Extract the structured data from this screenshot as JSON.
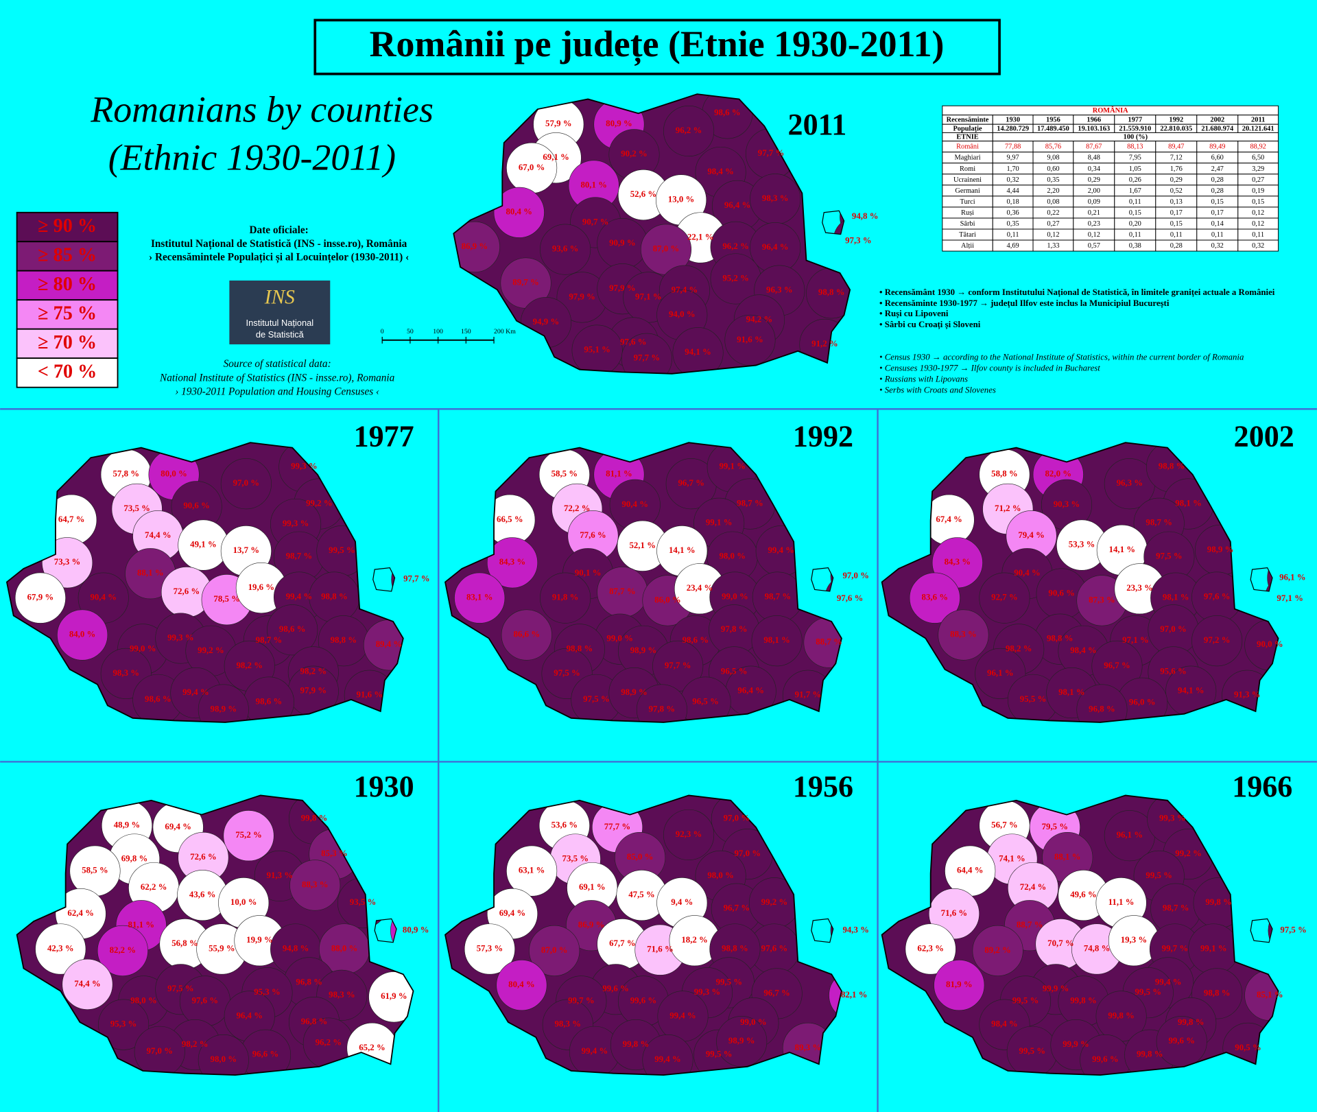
{
  "title": "Românii pe județe (Etnie 1930-2011)",
  "subtitle": [
    "Romanians by counties",
    "(Ethnic 1930-2011)"
  ],
  "legend": [
    {
      "label": "≥ 90 %",
      "min": 90,
      "color": "#5c0d55"
    },
    {
      "label": "≥ 85 %",
      "min": 85,
      "color": "#7d1b74"
    },
    {
      "label": "≥ 80 %",
      "min": 80,
      "color": "#c41ec4"
    },
    {
      "label": "≥ 75 %",
      "min": 75,
      "color": "#f487f4"
    },
    {
      "label": "≥ 70 %",
      "min": 70,
      "color": "#fbc2fb"
    },
    {
      "label": "< 70 %",
      "color": "#ffffff"
    }
  ],
  "official": [
    "Date oficiale:",
    "Institutul Național de Statistică (INS - insse.ro), România",
    "› Recensămintele Populațici și al Locuințelor  (1930-2011) ‹"
  ],
  "logo": {
    "mark": "INS",
    "lines": [
      "Institutul Național",
      "de Statistică"
    ]
  },
  "source": [
    "Source of statistical data:",
    "National Institute of Statistics (INS - insse.ro), Romania",
    "› 1930-2011 Population and Housing Censuses ‹"
  ],
  "scale_bar": [
    "0",
    "50",
    "100",
    "150",
    "200 Km"
  ],
  "table": {
    "title": "ROMÂNIA",
    "header": [
      "Recensăminte",
      "1930",
      "1956",
      "1966",
      "1977",
      "1992",
      "2002",
      "2011"
    ],
    "population": [
      "Populație",
      "14.280.729",
      "17.489.450",
      "19.103.163",
      "21.559.910",
      "22.810.035",
      "21.680.974",
      "20.121.641"
    ],
    "etnie": [
      "ETNIE",
      "100 (%)"
    ],
    "rows": [
      [
        "Români",
        "77,88",
        "85,76",
        "87,67",
        "88,13",
        "89,47",
        "89,49",
        "88,92"
      ],
      [
        "Maghiari",
        "9,97",
        "9,08",
        "8,48",
        "7,95",
        "7,12",
        "6,60",
        "6,50"
      ],
      [
        "Romi",
        "1,70",
        "0,60",
        "0,34",
        "1,05",
        "1,76",
        "2,47",
        "3,29"
      ],
      [
        "Ucraineni",
        "0,32",
        "0,35",
        "0,29",
        "0,26",
        "0,29",
        "0,28",
        "0,27"
      ],
      [
        "Germani",
        "4,44",
        "2,20",
        "2,00",
        "1,67",
        "0,52",
        "0,28",
        "0,19"
      ],
      [
        "Turci",
        "0,18",
        "0,08",
        "0,09",
        "0,11",
        "0,13",
        "0,15",
        "0,15"
      ],
      [
        "Ruși",
        "0,36",
        "0,22",
        "0,21",
        "0,15",
        "0,17",
        "0,17",
        "0,12"
      ],
      [
        "Sârbi",
        "0,35",
        "0,27",
        "0,23",
        "0,20",
        "0,15",
        "0,14",
        "0,12"
      ],
      [
        "Tătari",
        "0,11",
        "0,12",
        "0,12",
        "0,11",
        "0,11",
        "0,11",
        "0,11"
      ],
      [
        "Alții",
        "4,69",
        "1,33",
        "0,57",
        "0,38",
        "0,28",
        "0,32",
        "0,32"
      ]
    ]
  },
  "notes_ro": [
    "• Recensământ 1930 → conform Institutului Național de Statistică, în limitele graniței actuale a României",
    "• Recensăminte 1930-1977 → județul Ilfov este inclus la Municipiul București",
    "• Ruși cu Lipoveni",
    "• Sârbi cu Croați și Sloveni"
  ],
  "notes_en": [
    "• Census 1930 → according to the National Institute of Statistics, within the current border of Romania",
    "• Censuses 1930-1977 → Ilfov county is included in Bucharest",
    "• Russians with Lipovans",
    "• Serbs with Croats and Slovenes"
  ],
  "maps": [
    {
      "year": "2011",
      "values": [
        57.9,
        80.9,
        98.6,
        96.2,
        69.1,
        90.2,
        97.7,
        67.0,
        80.1,
        98.4,
        52.6,
        13.0,
        96.4,
        98.3,
        80.4,
        90.7,
        94.8,
        97.3,
        22.1,
        86.9,
        93.6,
        90.9,
        87.0,
        96.2,
        96.4,
        89.7,
        95.2,
        96.3,
        98.8,
        97.9,
        97.9,
        97.1,
        97.4,
        94.0,
        94.2,
        94.9,
        91.6,
        97.6,
        91.2,
        95.1,
        94.1,
        97.7
      ],
      "value_labels": [
        "57,9 %",
        "80,9 %",
        "98,6 %",
        "96,2 %",
        "69,1 %",
        "90,2 %",
        "97,7 %",
        "67,0 %",
        "80,1 %",
        "98,4 %",
        "52,6 %",
        "13,0 %",
        "96,4 %",
        "98,3 %",
        "80,4 %",
        "90,7 %",
        "94,8 %",
        "97,3 %",
        "22,1 %",
        "86,9 %",
        "93,6 %",
        "90,9 %",
        "87,0 %",
        "96,2 %",
        "96,4 %",
        "89,7 %",
        "95,2 %",
        "96,3 %",
        "98,8 %",
        "97,9 %",
        "97,9 %",
        "97,1 %",
        "97,4 %",
        "94,0 %",
        "94,2 %",
        "94,9 %",
        "91,6 %",
        "97,6 %",
        "91,2 %",
        "95,1 %",
        "94,1 %",
        "97,7 %"
      ]
    },
    {
      "year": "1977",
      "values": [
        57.8,
        80.0,
        97.0,
        99.3,
        73.5,
        90.6,
        99.2,
        64.7,
        74.4,
        99.3,
        49.1,
        13.7,
        98.7,
        99.5,
        73.3,
        88.1,
        97.7,
        67.9,
        90.4,
        72.6,
        78.5,
        19.6,
        99.4,
        98.8,
        84.0,
        99.0,
        99.3,
        99.2,
        98.7,
        98.6,
        98.8,
        89.4,
        98.2,
        98.3,
        98.2,
        97.9,
        91.6,
        98.6,
        99.4,
        98.6,
        98.9
      ],
      "value_labels": [
        "57,8 %",
        "80,0 %",
        "97,0 %",
        "99,3 %",
        "73,5 %",
        "90,6 %",
        "99,2 %",
        "64,7 %",
        "74,4 %",
        "99,3 %",
        "49,1 %",
        "13,7 %",
        "98,7 %",
        "99,5 %",
        "73,3 %",
        "88,1 %",
        "97,7 %",
        "67,9 %",
        "90,4 %",
        "72,6 %",
        "78,5 %",
        "19,6 %",
        "99,4 %",
        "98,8 %",
        "84,0 %",
        "99,0 %",
        "99,3 %",
        "99,2 %",
        "98,7 %",
        "98,6 %",
        "98,8 %",
        "89,4 %",
        "98,2 %",
        "98,3 %",
        "98,2 %",
        "97,9 %",
        "91,6 %",
        "98,6 %",
        "99,4 %",
        "98,6 %",
        "98,9 %"
      ]
    },
    {
      "year": "1992",
      "values": [
        58.5,
        81.1,
        96.7,
        99.1,
        72.2,
        90.4,
        98.7,
        66.5,
        77.6,
        99.1,
        52.1,
        14.1,
        98.0,
        99.4,
        84.3,
        90.1,
        97.0,
        83.1,
        91.8,
        87.7,
        86.0,
        23.4,
        99.0,
        98.7,
        97.6,
        86.6,
        99.0,
        98.8,
        98.9,
        98.6,
        97.8,
        98.1,
        88.7,
        97.7,
        97.5,
        96.5,
        96.4,
        91.7,
        97.5,
        98.9,
        96.5,
        97.8
      ],
      "value_labels": [
        "58,5 %",
        "81,1 %",
        "96,7 %",
        "99,1 %",
        "72,2 %",
        "90,4 %",
        "98,7 %",
        "66,5 %",
        "77,6 %",
        "99,1 %",
        "52,1 %",
        "14,1 %",
        "98,0 %",
        "99,4 %",
        "84,3 %",
        "90,1 %",
        "97,0 %",
        "83,1 %",
        "91,8 %",
        "87,7 %",
        "86,0 %",
        "23,4 %",
        "99,0 %",
        "98,7 %",
        "97,6 %",
        "86,6 %",
        "99,0 %",
        "98,8 %",
        "98,9 %",
        "98,6 %",
        "97,8 %",
        "98,1 %",
        "88,7 %",
        "97,7 %",
        "97,5 %",
        "96,5 %",
        "96,4 %",
        "91,7 %",
        "97,5 %",
        "98,9 %",
        "96,5 %",
        "97,8 %"
      ]
    },
    {
      "year": "2002",
      "values": [
        58.8,
        82.0,
        96.3,
        98.8,
        71.2,
        90.3,
        98.1,
        67.4,
        79.4,
        98.7,
        53.3,
        14.1,
        97.5,
        98.9,
        84.3,
        90.4,
        96.1,
        83.6,
        92.7,
        90.6,
        87.3,
        23.3,
        98.1,
        97.6,
        97.1,
        88.3,
        98.8,
        98.2,
        98.4,
        97.1,
        97.0,
        97.2,
        90.0,
        96.7,
        96.1,
        95.6,
        94.1,
        91.3,
        95.5,
        98.1,
        96.0,
        96.8
      ],
      "value_labels": [
        "58,8 %",
        "82,0 %",
        "96,3 %",
        "98,8 %",
        "71,2 %",
        "90,3 %",
        "98,1 %",
        "67,4 %",
        "79,4 %",
        "98,7 %",
        "53,3 %",
        "14,1 %",
        "97,5 %",
        "98,9 %",
        "84,3 %",
        "90,4 %",
        "96,1 %",
        "83,6 %",
        "92,7 %",
        "90,6 %",
        "87,3 %",
        "23,3 %",
        "98,1 %",
        "97,6 %",
        "97,1 %",
        "88,3 %",
        "98,8 %",
        "98,2 %",
        "98,4 %",
        "97,1 %",
        "97,0 %",
        "97,2 %",
        "90,0 %",
        "96,7 %",
        "96,1 %",
        "95,6 %",
        "94,1 %",
        "91,3 %",
        "95,5 %",
        "98,1 %",
        "96,0 %",
        "96,8 %"
      ]
    },
    {
      "year": "1930",
      "values": [
        48.9,
        69.4,
        75.2,
        99.8,
        69.8,
        72.6,
        85.3,
        58.5,
        62.2,
        91.3,
        43.6,
        10.0,
        88.3,
        93.5,
        62.4,
        81.1,
        80.9,
        42.3,
        82.2,
        56.8,
        55.9,
        19.9,
        94.8,
        88.0,
        96.8,
        74.4,
        98.3,
        61.9,
        98.0,
        97.5,
        97.6,
        95.3,
        96.4,
        96.8,
        95.3,
        98.2,
        96.2,
        97.0,
        96.6,
        65.2,
        98.0
      ],
      "value_labels": [
        "48,9 %",
        "69,4 %",
        "75,2 %",
        "99,8 %",
        "69,8 %",
        "72,6 %",
        "85,3 %",
        "58,5 %",
        "62,2 %",
        "91,3 %",
        "43,6 %",
        "10,0 %",
        "88,3 %",
        "93,5 %",
        "62,4 %",
        "81,1 %",
        "80,9 %",
        "42,3 %",
        "82,2 %",
        "56,8 %",
        "55,9 %",
        "19,9 %",
        "94,8 %",
        "88,0 %",
        "96,8 %",
        "74,4 %",
        "98,3 %",
        "61,9 %",
        "98,0 %",
        "97,5 %",
        "97,6 %",
        "95,3 %",
        "96,4 %",
        "96,8 %",
        "95,3 %",
        "98,2 %",
        "96,2 %",
        "97,0 %",
        "96,6 %",
        "65,2 %",
        "98,0 %"
      ]
    },
    {
      "year": "1956",
      "values": [
        53.6,
        77.7,
        92.3,
        97.0,
        73.5,
        85.0,
        97.0,
        63.1,
        69.1,
        98.0,
        47.5,
        9.4,
        69.4,
        86.9,
        96.7,
        99.2,
        94.3,
        57.3,
        87.0,
        67.7,
        71.6,
        18.2,
        97.6,
        98.8,
        80.4,
        99.5,
        99.6,
        99.6,
        99.3,
        96.7,
        82.1,
        99.7,
        99.4,
        99.0,
        98.3,
        89.3,
        99.4,
        99.8,
        99.4,
        99.5,
        98.9
      ],
      "value_labels": [
        "53,6 %",
        "77,7 %",
        "92,3 %",
        "97,0 %",
        "73,5 %",
        "85,0 %",
        "97,0 %",
        "63,1 %",
        "69,1 %",
        "98,0 %",
        "47,5 %",
        "9,4 %",
        "69,4 %",
        "86,9 %",
        "96,7 %",
        "99,2 %",
        "94,3 %",
        "57,3 %",
        "87,0 %",
        "67,7 %",
        "71,6 %",
        "18,2 %",
        "97,6 %",
        "98,8 %",
        "80,4 %",
        "99,5 %",
        "99,6 %",
        "99,6 %",
        "99,3 %",
        "96,7 %",
        "82,1 %",
        "99,7 %",
        "99,4 %",
        "99,0 %",
        "98,3 %",
        "89,3 %",
        "99,4 %",
        "99,8 %",
        "99,4 %",
        "99,5 %",
        "98,9 %"
      ]
    },
    {
      "year": "1966",
      "values": [
        56.7,
        79.5,
        96.1,
        99.3,
        74.1,
        88.1,
        99.2,
        64.4,
        72.4,
        99.5,
        49.6,
        11.1,
        98.7,
        99.8,
        71.6,
        88.7,
        97.5,
        62.3,
        89.2,
        70.7,
        74.8,
        19.3,
        99.7,
        99.1,
        81.9,
        99.4,
        99.9,
        99.8,
        99.5,
        98.8,
        85.1,
        99.5,
        99.8,
        99.8,
        98.4,
        90.5,
        99.5,
        99.9,
        99.6,
        99.8,
        99.6
      ],
      "value_labels": [
        "56,7 %",
        "79,5 %",
        "96,1 %",
        "99,3 %",
        "74,1 %",
        "88,1 %",
        "99,2 %",
        "64,4 %",
        "72,4 %",
        "99,5 %",
        "49,6 %",
        "11,1 %",
        "98,7 %",
        "99,8 %",
        "71,6 %",
        "88,7 %",
        "97,5 %",
        "62,3 %",
        "89,2 %",
        "70,7 %",
        "74,8 %",
        "19,3 %",
        "99,7 %",
        "99,1 %",
        "81,9 %",
        "99,4 %",
        "99,9 %",
        "99,8 %",
        "99,5 %",
        "98,8 %",
        "85,1 %",
        "99,5 %",
        "99,8 %",
        "99,8 %",
        "98,4 %",
        "90,5 %",
        "99,5 %",
        "99,9 %",
        "99,6 %",
        "99,8 %",
        "99,6 %"
      ]
    }
  ]
}
